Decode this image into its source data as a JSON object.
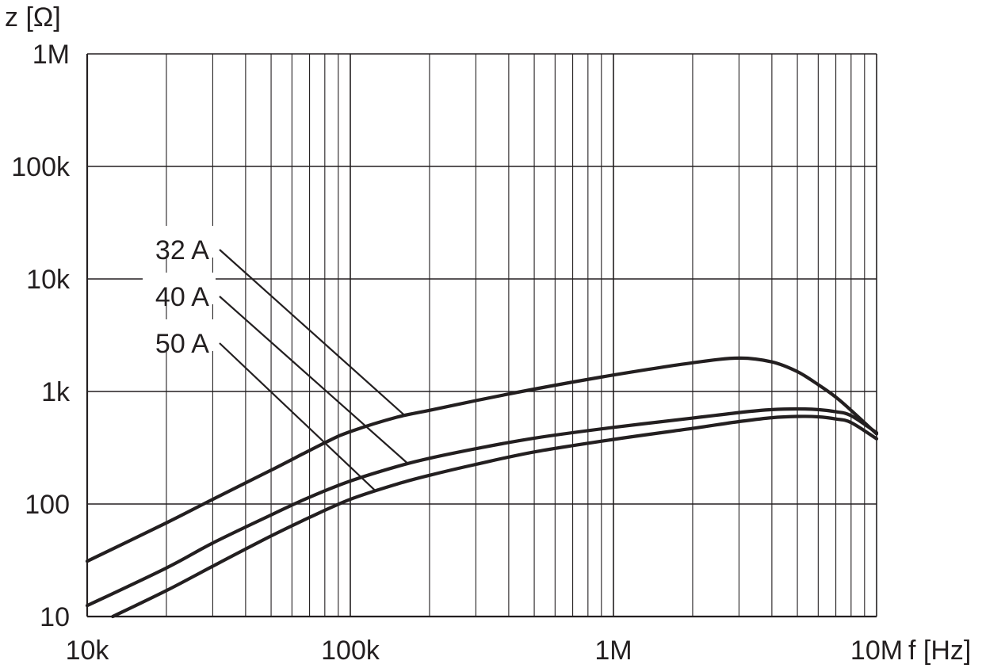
{
  "chart_data": {
    "type": "line",
    "x_scale": "log",
    "y_scale": "log",
    "xlim": [
      10000,
      10000000
    ],
    "ylim": [
      10,
      1000000
    ],
    "xlabel": "f [Hz]",
    "ylabel": "z [Ω]",
    "x_ticks": [
      {
        "value": 10000,
        "label": "10k"
      },
      {
        "value": 100000,
        "label": "100k"
      },
      {
        "value": 1000000,
        "label": "1M"
      },
      {
        "value": 10000000,
        "label": "10M"
      }
    ],
    "y_ticks": [
      {
        "value": 10,
        "label": "10"
      },
      {
        "value": 100,
        "label": "100"
      },
      {
        "value": 1000,
        "label": "1k"
      },
      {
        "value": 10000,
        "label": "10k"
      },
      {
        "value": 100000,
        "label": "100k"
      },
      {
        "value": 1000000,
        "label": "1M"
      }
    ],
    "grid": true,
    "series": [
      {
        "name": "32 A",
        "color": "#231f20",
        "leader_at": {
          "x": 160000,
          "y": 620
        },
        "points": [
          [
            10000,
            31
          ],
          [
            20000,
            68
          ],
          [
            30000,
            110
          ],
          [
            50000,
            200
          ],
          [
            80000,
            350
          ],
          [
            100000,
            440
          ],
          [
            150000,
            590
          ],
          [
            200000,
            680
          ],
          [
            300000,
            830
          ],
          [
            500000,
            1050
          ],
          [
            1000000,
            1400
          ],
          [
            2000000,
            1800
          ],
          [
            3000000,
            1980
          ],
          [
            4000000,
            1830
          ],
          [
            5000000,
            1500
          ],
          [
            6000000,
            1150
          ],
          [
            7000000,
            890
          ],
          [
            8000000,
            680
          ],
          [
            10000000,
            420
          ]
        ]
      },
      {
        "name": "40 A",
        "color": "#231f20",
        "leader_at": {
          "x": 165000,
          "y": 230
        },
        "points": [
          [
            10000,
            12.5
          ],
          [
            20000,
            27
          ],
          [
            30000,
            45
          ],
          [
            50000,
            80
          ],
          [
            70000,
            115
          ],
          [
            100000,
            160
          ],
          [
            150000,
            215
          ],
          [
            200000,
            255
          ],
          [
            300000,
            310
          ],
          [
            500000,
            385
          ],
          [
            1000000,
            480
          ],
          [
            2000000,
            580
          ],
          [
            3000000,
            650
          ],
          [
            4000000,
            690
          ],
          [
            5000000,
            700
          ],
          [
            6000000,
            690
          ],
          [
            7000000,
            660
          ],
          [
            8000000,
            610
          ],
          [
            10000000,
            430
          ]
        ]
      },
      {
        "name": "50 A",
        "color": "#231f20",
        "leader_at": {
          "x": 125000,
          "y": 130
        },
        "points": [
          [
            12500,
            10
          ],
          [
            20000,
            17
          ],
          [
            30000,
            28
          ],
          [
            50000,
            52
          ],
          [
            70000,
            76
          ],
          [
            100000,
            110
          ],
          [
            150000,
            150
          ],
          [
            200000,
            180
          ],
          [
            300000,
            225
          ],
          [
            500000,
            290
          ],
          [
            1000000,
            375
          ],
          [
            2000000,
            470
          ],
          [
            3000000,
            540
          ],
          [
            4000000,
            585
          ],
          [
            5000000,
            600
          ],
          [
            6000000,
            595
          ],
          [
            7000000,
            570
          ],
          [
            8000000,
            530
          ],
          [
            10000000,
            380
          ]
        ]
      }
    ]
  }
}
